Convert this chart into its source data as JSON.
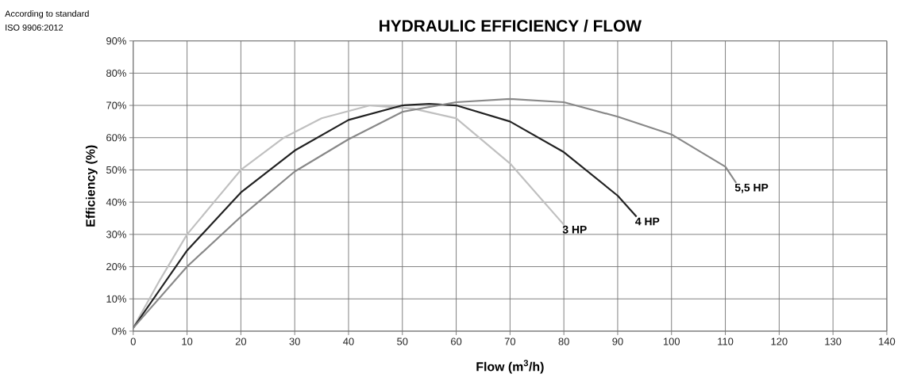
{
  "chart_data": {
    "type": "line",
    "title": "HYDRAULIC EFFICIENCY / FLOW",
    "xlabel": "Flow (m$^{3}$/h)",
    "ylabel": "Efficiency (%)",
    "annotations": [
      "According to standard",
      "ISO 9906:2012"
    ],
    "xlim": [
      0,
      140
    ],
    "xticks": [
      0,
      10,
      20,
      30,
      40,
      50,
      60,
      70,
      80,
      90,
      100,
      110,
      120,
      130,
      140
    ],
    "ylim": [
      0,
      90
    ],
    "yticks": [
      {
        "value": 0,
        "label": "0%"
      },
      {
        "value": 10,
        "label": "10%"
      },
      {
        "value": 20,
        "label": "20%"
      },
      {
        "value": 30,
        "label": "30%"
      },
      {
        "value": 40,
        "label": "40%"
      },
      {
        "value": 50,
        "label": "50%"
      },
      {
        "value": 60,
        "label": "60%"
      },
      {
        "value": 70,
        "label": "70%"
      },
      {
        "value": 80,
        "label": "80%"
      },
      {
        "value": 90,
        "label": "90%"
      }
    ],
    "grid": true,
    "legend": false,
    "marker": "none",
    "line_style": "solid",
    "series": [
      {
        "name": "3 HP",
        "color": "#c0c0c0",
        "x": [
          0,
          5,
          10,
          15,
          20,
          28,
          35,
          44,
          52,
          60,
          70,
          80
        ],
        "values": [
          1,
          16,
          30,
          40,
          50,
          60,
          66,
          70,
          69,
          66,
          52,
          33
        ]
      },
      {
        "name": "4 HP",
        "color": "#222222",
        "x": [
          0,
          5,
          10,
          20,
          30,
          40,
          50,
          55,
          60,
          70,
          80,
          90,
          93.5
        ],
        "values": [
          1,
          13,
          25,
          43,
          56,
          65.5,
          70,
          70.5,
          70,
          65,
          55.5,
          42,
          35.5
        ]
      },
      {
        "name": "5,5 HP",
        "color": "#888888",
        "x": [
          0,
          10,
          20,
          30,
          40,
          50,
          60,
          70,
          80,
          90,
          100,
          110,
          112
        ],
        "values": [
          1,
          20,
          35.5,
          49.5,
          59.5,
          68,
          71,
          72,
          71,
          66.5,
          61,
          51,
          46
        ]
      }
    ]
  }
}
